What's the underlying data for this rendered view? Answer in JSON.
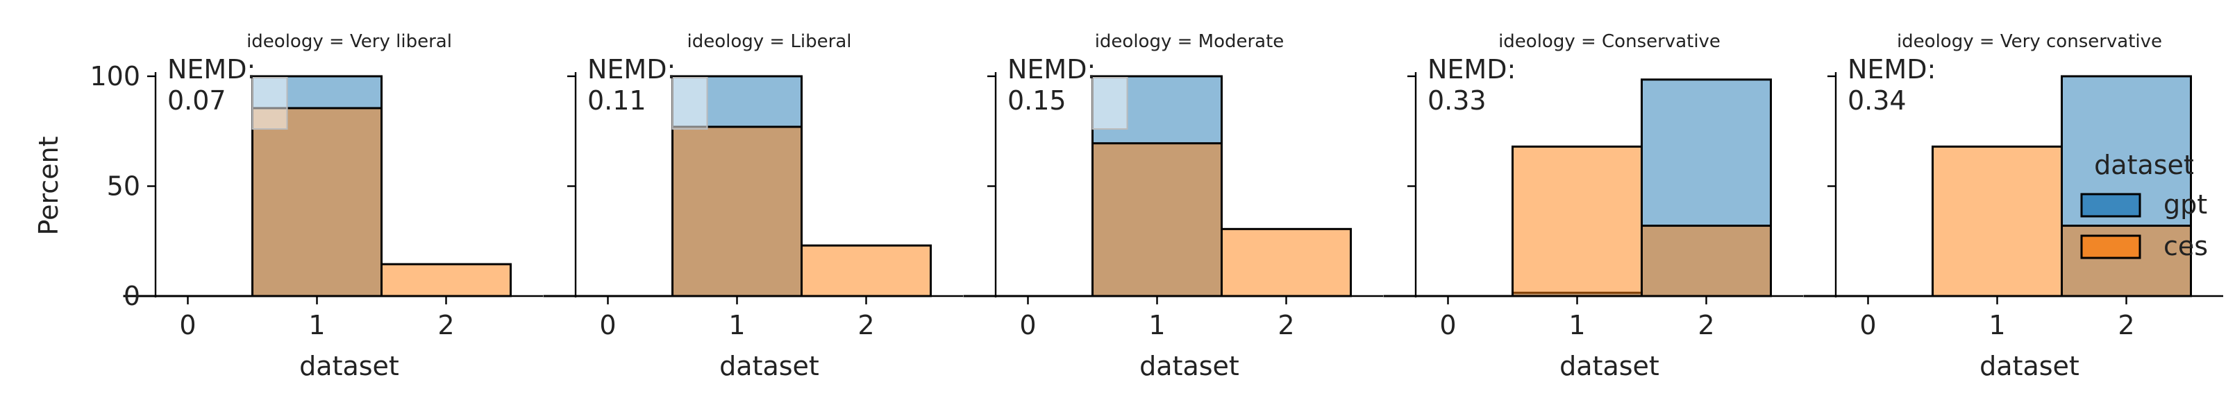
{
  "chart_data": {
    "type": "bar",
    "subtype": "faceted overlaid histogram",
    "xlabel": "dataset",
    "ylabel": "Percent",
    "x_ticks": [
      "0",
      "1",
      "2"
    ],
    "y_ticks": [
      "0",
      "50",
      "100"
    ],
    "ylim": [
      0,
      100
    ],
    "xlim": [
      -0.25,
      2.75
    ],
    "bins": [
      [
        -0.5,
        0.5
      ],
      [
        0.5,
        1.5
      ],
      [
        1.5,
        2.5
      ]
    ],
    "legend": {
      "title": "dataset",
      "placement": "right",
      "entries": [
        {
          "label": "gpt",
          "color": "#1f77b4"
        },
        {
          "label": "ces",
          "color": "#ff7f0e"
        }
      ]
    },
    "facets": [
      {
        "title": "ideology = Very liberal",
        "nemd_label": "NEMD:",
        "nemd_value": "0.07",
        "series": [
          {
            "legend_label": "gpt",
            "values": [
              0,
              100,
              0
            ]
          },
          {
            "legend_label": "ces",
            "values": [
              0,
              85.5,
              14.5
            ]
          }
        ]
      },
      {
        "title": "ideology = Liberal",
        "nemd_label": "NEMD:",
        "nemd_value": "0.11",
        "series": [
          {
            "legend_label": "gpt",
            "values": [
              0,
              100,
              0
            ]
          },
          {
            "legend_label": "ces",
            "values": [
              0,
              77,
              23
            ]
          }
        ]
      },
      {
        "title": "ideology = Moderate",
        "nemd_label": "NEMD:",
        "nemd_value": "0.15",
        "series": [
          {
            "legend_label": "gpt",
            "values": [
              0,
              100,
              0
            ]
          },
          {
            "legend_label": "ces",
            "values": [
              0,
              69.5,
              30.5
            ]
          }
        ]
      },
      {
        "title": "ideology = Conservative",
        "nemd_label": "NEMD:",
        "nemd_value": "0.33",
        "series": [
          {
            "legend_label": "gpt",
            "values": [
              0,
              1.5,
              98.5
            ]
          },
          {
            "legend_label": "ces",
            "values": [
              0,
              68,
              32
            ]
          }
        ]
      },
      {
        "title": "ideology = Very conservative",
        "nemd_label": "NEMD:",
        "nemd_value": "0.34",
        "series": [
          {
            "legend_label": "gpt",
            "values": [
              0,
              0,
              100
            ]
          },
          {
            "legend_label": "ces",
            "values": [
              0,
              68,
              32
            ]
          }
        ]
      }
    ],
    "colors": {
      "gpt_fill": "#1f77b4",
      "ces_fill": "#ff7f0e",
      "edge": "#000000",
      "spine": "#000000",
      "nemd_box": "#ffffff"
    }
  }
}
